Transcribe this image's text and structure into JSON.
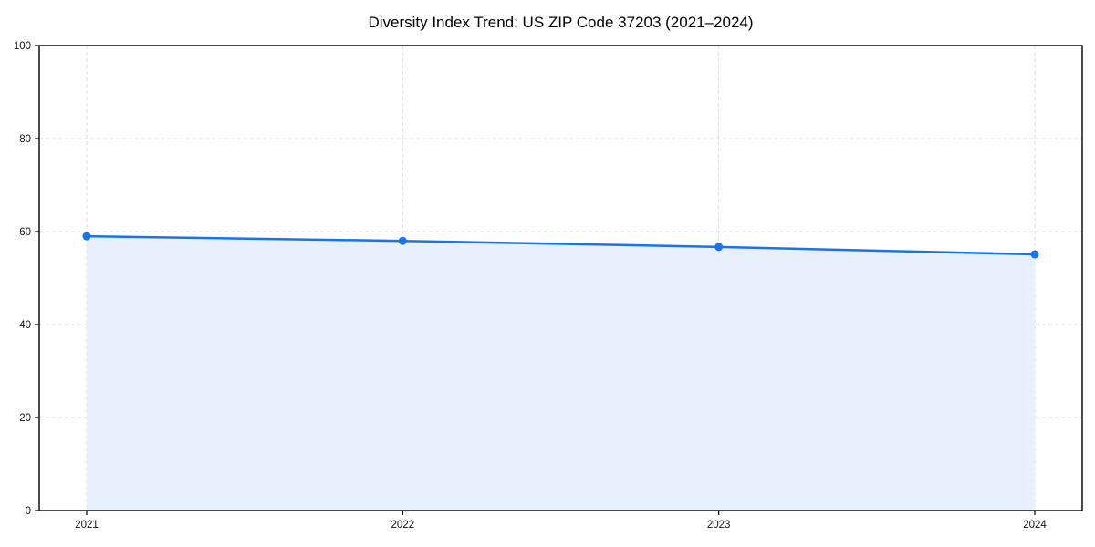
{
  "figure": {
    "background": "#ffffff"
  },
  "chart_data": {
    "type": "area",
    "title": "Diversity Index Trend: US ZIP Code 37203 (2021–2024)",
    "categories": [
      "2021",
      "2022",
      "2023",
      "2024"
    ],
    "series": [
      {
        "name": "Diversity Index",
        "values": [
          59.0,
          58.0,
          56.7,
          55.1
        ]
      }
    ],
    "xlabel": "",
    "ylabel": "",
    "ylim": [
      0,
      100
    ],
    "yticks": [
      0,
      20,
      40,
      60,
      80,
      100
    ],
    "grid": "dashed",
    "legend_position": "none",
    "line_color": "#1a73e8",
    "marker_color": "#1a73e8",
    "fill_color": "#e8f0fd",
    "grid_color": "#dddddd",
    "spine_color": "#000000",
    "tick_label_color": "#111111",
    "title_color": "#000000"
  }
}
